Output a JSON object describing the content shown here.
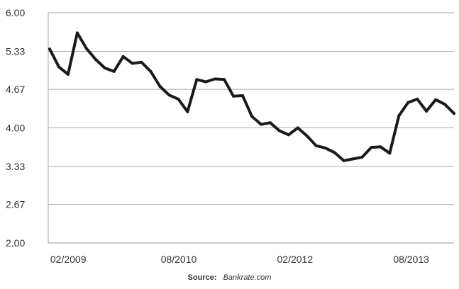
{
  "chart_data": {
    "type": "line",
    "title": "",
    "xlabel": "",
    "ylabel": "",
    "ylim": [
      2.0,
      6.0
    ],
    "yticks": [
      "2.00",
      "2.67",
      "3.33",
      "4.00",
      "4.67",
      "5.33",
      "6.00"
    ],
    "xticks": [
      "02/2009",
      "08/2010",
      "02/2012",
      "08/2013"
    ],
    "grid": "horizontal",
    "series": [
      {
        "values": [
          5.37,
          5.06,
          4.93,
          5.65,
          5.38,
          5.19,
          5.04,
          4.98,
          5.24,
          5.12,
          5.14,
          4.98,
          4.72,
          4.57,
          4.5,
          4.28,
          4.84,
          4.8,
          4.85,
          4.84,
          4.55,
          4.56,
          4.2,
          4.06,
          4.09,
          3.95,
          3.88,
          4.0,
          3.86,
          3.69,
          3.65,
          3.57,
          3.43,
          3.46,
          3.49,
          3.66,
          3.67,
          3.56,
          4.21,
          4.44,
          4.5,
          4.29,
          4.49,
          4.41,
          4.25
        ]
      }
    ],
    "colors": {
      "line": "#1a1a1a",
      "grid": "#aaaaaa"
    }
  },
  "source": {
    "label": "Source:",
    "value": "Bankrate.com"
  }
}
